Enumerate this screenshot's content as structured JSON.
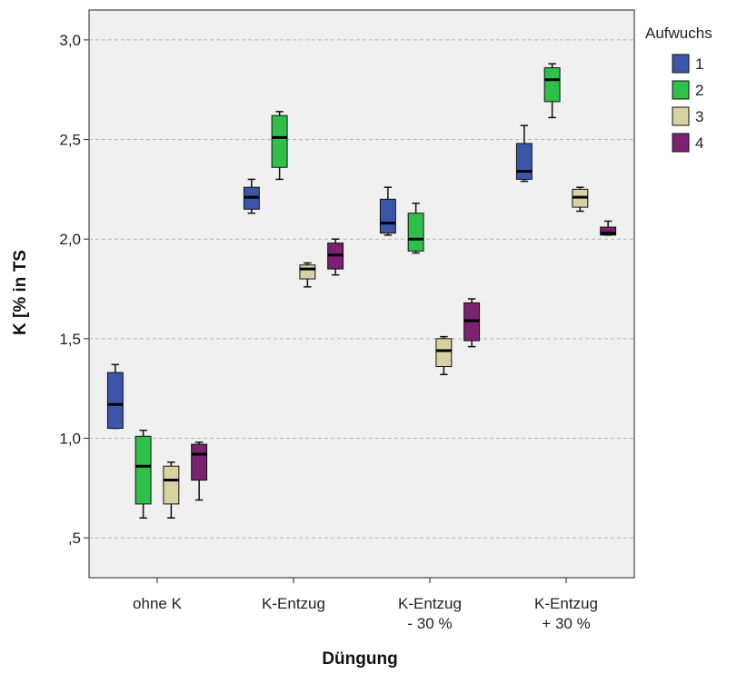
{
  "chart_data": {
    "type": "boxplot",
    "xlabel": "Düngung",
    "ylabel": "K [% in TS",
    "ylim": [
      0.3,
      3.15
    ],
    "y_ticks": [
      {
        "value": 0.5,
        "label": ",5"
      },
      {
        "value": 1.0,
        "label": "1,0"
      },
      {
        "value": 1.5,
        "label": "1,5"
      },
      {
        "value": 2.0,
        "label": "2,0"
      },
      {
        "value": 2.5,
        "label": "2,5"
      },
      {
        "value": 3.0,
        "label": "3,0"
      }
    ],
    "grid": "horizontal dashed",
    "legend_position": "right",
    "legend_title": "Aufwuchs",
    "categories": [
      {
        "lines": [
          "ohne K"
        ]
      },
      {
        "lines": [
          "K-Entzug"
        ]
      },
      {
        "lines": [
          "K-Entzug",
          "- 30 %"
        ]
      },
      {
        "lines": [
          "K-Entzug",
          "+ 30 %"
        ]
      }
    ],
    "series": [
      {
        "name": "1",
        "color": "#3b56a8",
        "boxes": [
          {
            "min": 1.05,
            "q1": 1.05,
            "median": 1.17,
            "q3": 1.33,
            "max": 1.37
          },
          {
            "min": 2.13,
            "q1": 2.15,
            "median": 2.21,
            "q3": 2.26,
            "max": 2.3
          },
          {
            "min": 2.02,
            "q1": 2.03,
            "median": 2.08,
            "q3": 2.2,
            "max": 2.26
          },
          {
            "min": 2.29,
            "q1": 2.3,
            "median": 2.34,
            "q3": 2.48,
            "max": 2.57
          }
        ]
      },
      {
        "name": "2",
        "color": "#30c04a",
        "boxes": [
          {
            "min": 0.6,
            "q1": 0.67,
            "median": 0.86,
            "q3": 1.01,
            "max": 1.04
          },
          {
            "min": 2.3,
            "q1": 2.36,
            "median": 2.51,
            "q3": 2.62,
            "max": 2.64
          },
          {
            "min": 1.93,
            "q1": 1.94,
            "median": 2.0,
            "q3": 2.13,
            "max": 2.18
          },
          {
            "min": 2.61,
            "q1": 2.69,
            "median": 2.8,
            "q3": 2.86,
            "max": 2.88
          }
        ]
      },
      {
        "name": "3",
        "color": "#d8d2a2",
        "boxes": [
          {
            "min": 0.6,
            "q1": 0.67,
            "median": 0.79,
            "q3": 0.86,
            "max": 0.88
          },
          {
            "min": 1.76,
            "q1": 1.8,
            "median": 1.85,
            "q3": 1.87,
            "max": 1.88
          },
          {
            "min": 1.32,
            "q1": 1.36,
            "median": 1.44,
            "q3": 1.5,
            "max": 1.51
          },
          {
            "min": 2.14,
            "q1": 2.16,
            "median": 2.21,
            "q3": 2.25,
            "max": 2.26
          }
        ]
      },
      {
        "name": "4",
        "color": "#7a226f",
        "boxes": [
          {
            "min": 0.69,
            "q1": 0.79,
            "median": 0.92,
            "q3": 0.97,
            "max": 0.98
          },
          {
            "min": 1.82,
            "q1": 1.85,
            "median": 1.92,
            "q3": 1.98,
            "max": 2.0
          },
          {
            "min": 1.46,
            "q1": 1.49,
            "median": 1.59,
            "q3": 1.68,
            "max": 1.7
          },
          {
            "min": 2.02,
            "q1": 2.02,
            "median": 2.03,
            "q3": 2.06,
            "max": 2.09
          }
        ]
      }
    ]
  }
}
